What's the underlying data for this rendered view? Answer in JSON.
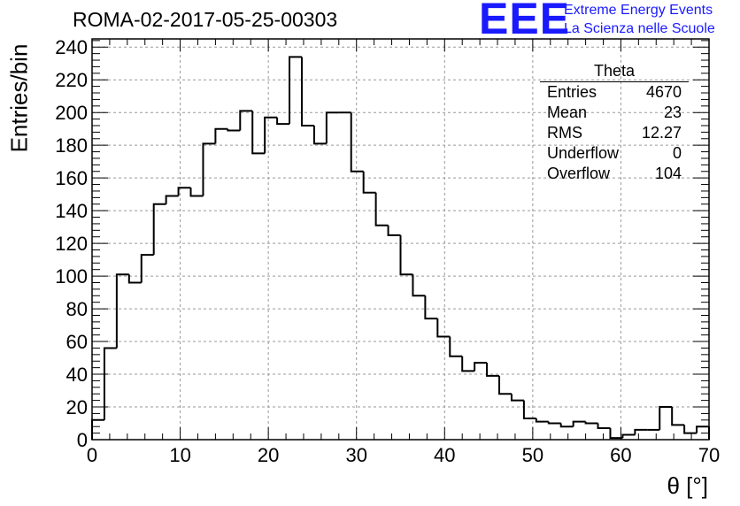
{
  "header": {
    "title": "ROMA-02-2017-05-25-00303",
    "logo_text": "EEE",
    "logo_line1": "Extreme Energy Events",
    "logo_line2": "La Scienza nelle Scuole"
  },
  "stats_box": {
    "title": "Theta",
    "rows": [
      {
        "label": "Entries",
        "value": "4670"
      },
      {
        "label": "Mean",
        "value": "23"
      },
      {
        "label": "RMS",
        "value": "12.27"
      },
      {
        "label": "Underflow",
        "value": "0"
      },
      {
        "label": "Overflow",
        "value": "104"
      }
    ]
  },
  "chart_data": {
    "type": "bar",
    "style": "step-histogram",
    "title": "ROMA-02-2017-05-25-00303",
    "xlabel": "θ [°]",
    "ylabel": "Entries/bin",
    "xlim": [
      0,
      70
    ],
    "ylim": [
      0,
      245
    ],
    "grid": true,
    "x_ticks": [
      0,
      10,
      20,
      30,
      40,
      50,
      60,
      70
    ],
    "y_ticks": [
      0,
      20,
      40,
      60,
      80,
      100,
      120,
      140,
      160,
      180,
      200,
      220,
      240
    ],
    "bin_width": 1.4,
    "values": [
      12,
      56,
      101,
      96,
      113,
      144,
      149,
      154,
      149,
      181,
      190,
      189,
      201,
      175,
      197,
      193,
      234,
      192,
      181,
      200,
      200,
      164,
      151,
      131,
      125,
      101,
      88,
      74,
      63,
      51,
      42,
      47,
      39,
      28,
      24,
      13,
      11,
      10,
      8,
      11,
      10,
      7,
      1,
      3,
      6,
      6,
      20,
      9,
      4,
      8
    ]
  }
}
